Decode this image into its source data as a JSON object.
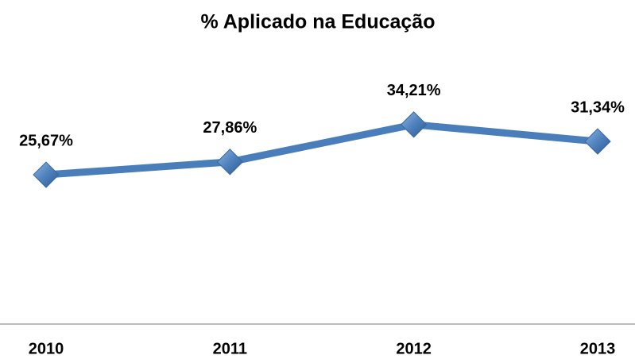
{
  "chart_data": {
    "type": "line",
    "title": "% Aplicado  na Educação",
    "categories": [
      "2010",
      "2011",
      "2012",
      "2013"
    ],
    "values": [
      25.67,
      27.86,
      34.21,
      31.34
    ],
    "value_labels": [
      "25,67%",
      "27,86%",
      "34,21%",
      "31,34%"
    ],
    "color": "#4a7ebb",
    "ylim": [
      0,
      40
    ]
  }
}
